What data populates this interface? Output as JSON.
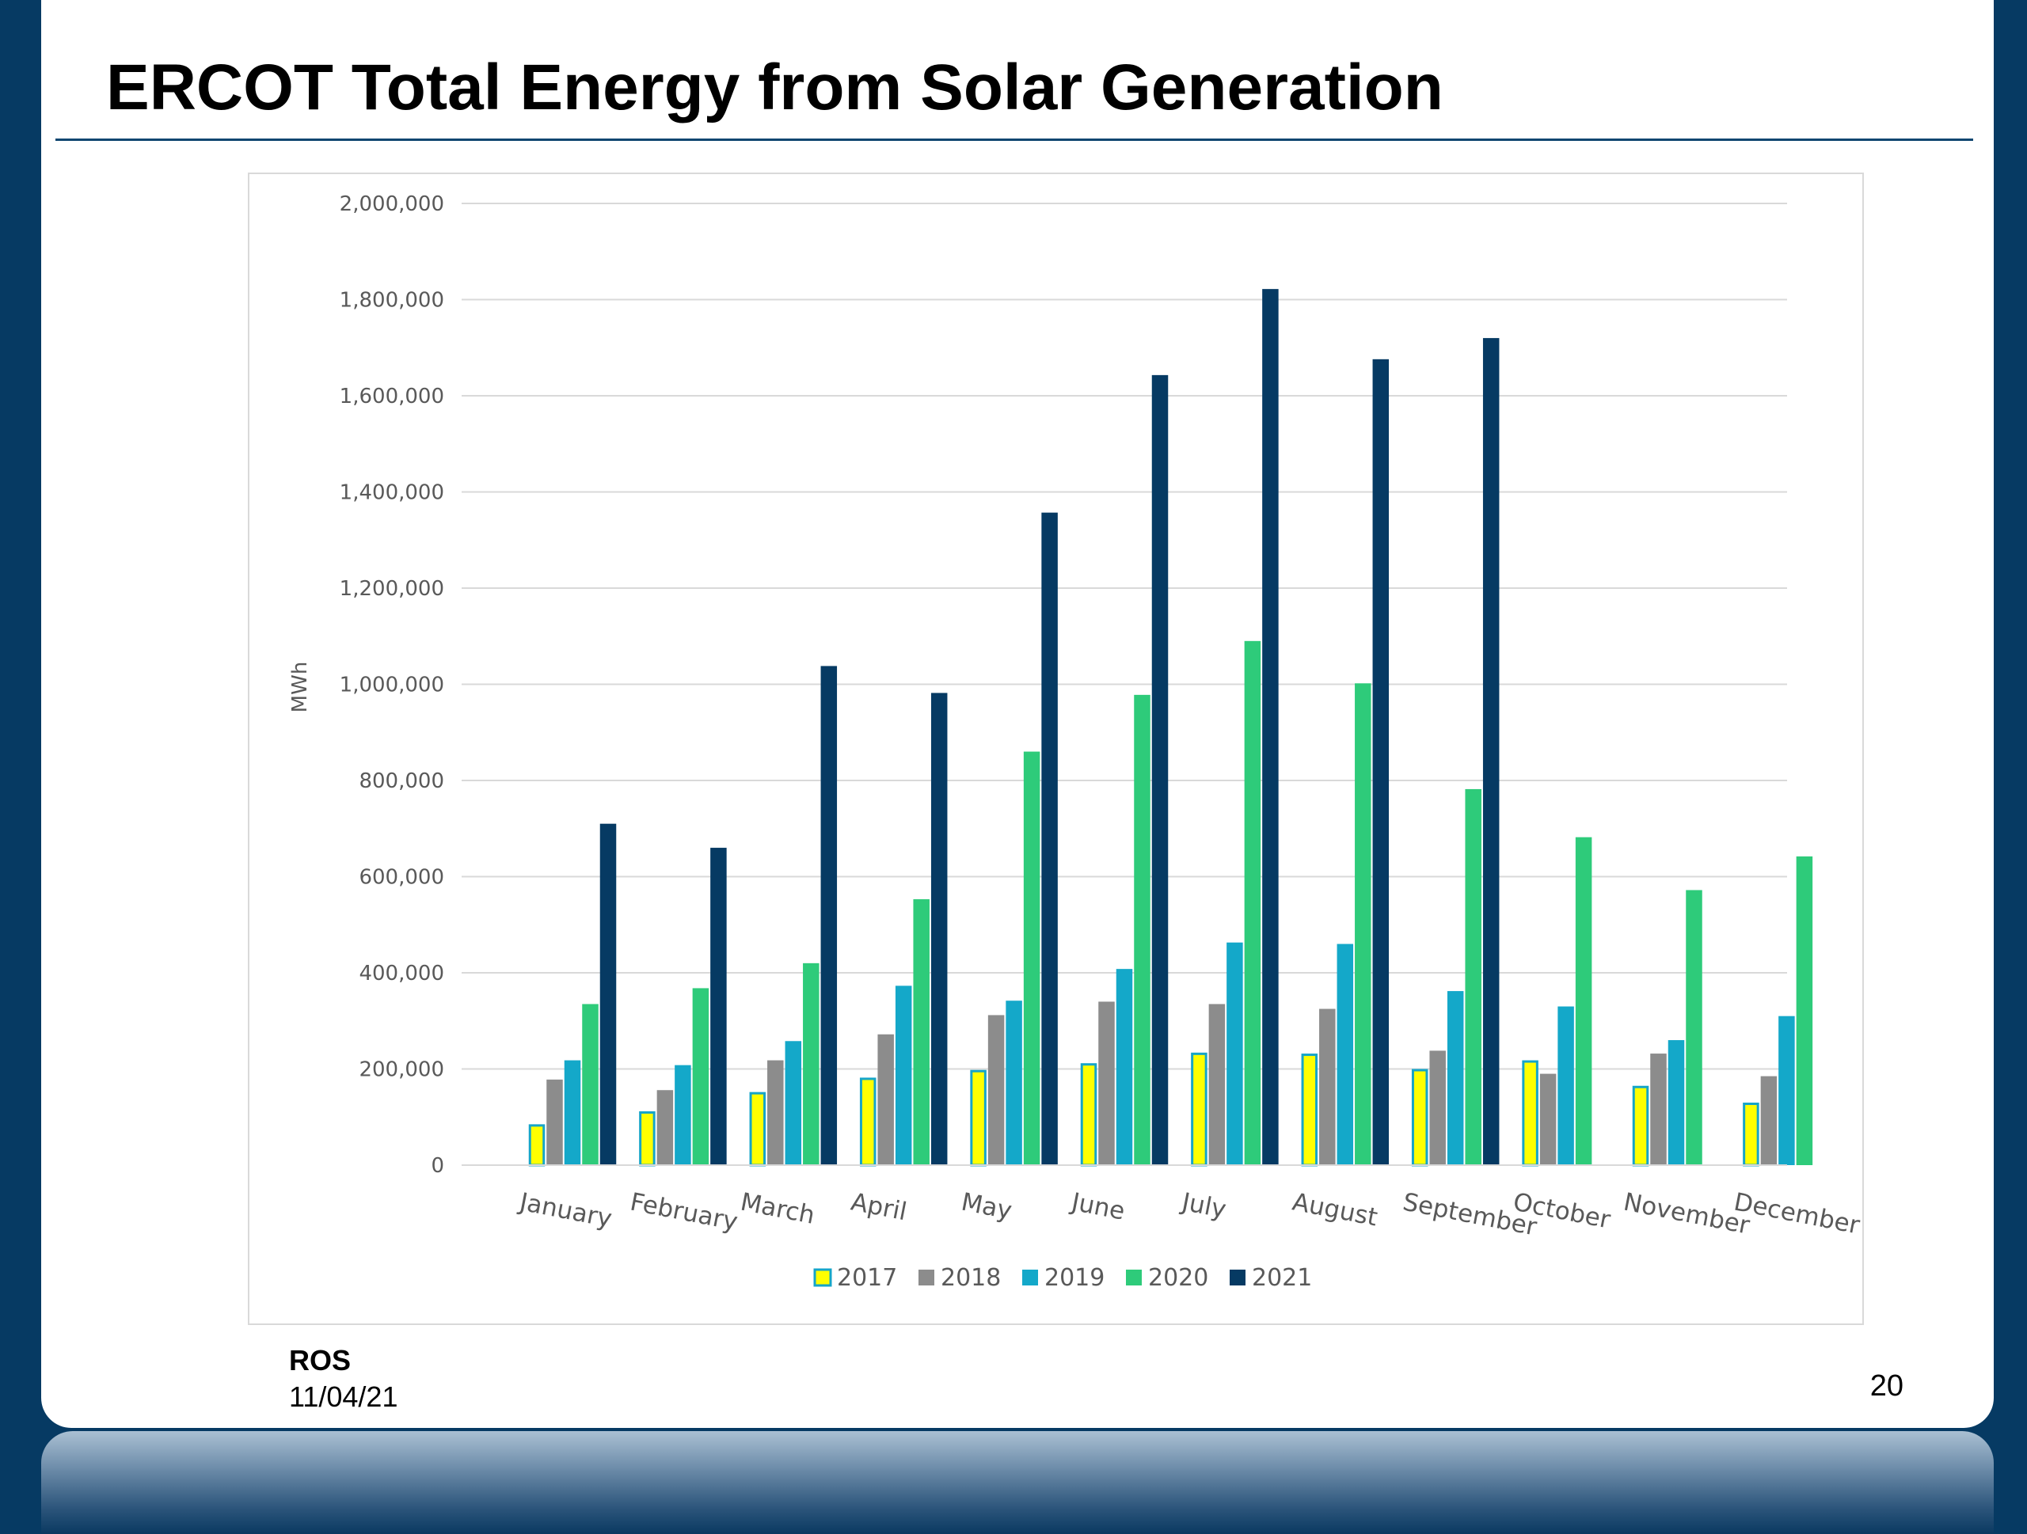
{
  "slide": {
    "title": "ERCOT Total Energy from Solar Generation",
    "footer_label": "ROS",
    "footer_date": "11/04/21",
    "page_number": "20"
  },
  "colors": {
    "background": "#063a63",
    "title_rule": "#0f4670",
    "gridline": "#d9d9d9",
    "axis_text": "#595959"
  },
  "chart_data": {
    "type": "bar",
    "title": "",
    "xlabel": "",
    "ylabel": "MWh",
    "ylim": [
      0,
      2000000
    ],
    "yticks": [
      0,
      200000,
      400000,
      600000,
      800000,
      1000000,
      1200000,
      1400000,
      1600000,
      1800000,
      2000000
    ],
    "ytick_labels": [
      "0",
      "200,000",
      "400,000",
      "600,000",
      "800,000",
      "1,000,000",
      "1,200,000",
      "1,400,000",
      "1,600,000",
      "1,800,000",
      "2,000,000"
    ],
    "grid": true,
    "legend_position": "bottom",
    "categories": [
      "January",
      "February",
      "March",
      "April",
      "May",
      "June",
      "July",
      "August",
      "September",
      "October",
      "November",
      "December"
    ],
    "series": [
      {
        "name": "2017",
        "color": "#ffff00",
        "outline": "#16a5c8",
        "values": [
          85000,
          112000,
          152000,
          182000,
          198000,
          212000,
          234000,
          232000,
          200000,
          218000,
          165000,
          130000
        ]
      },
      {
        "name": "2018",
        "color": "#8c8c8c",
        "values": [
          178000,
          156000,
          218000,
          272000,
          312000,
          340000,
          335000,
          325000,
          238000,
          190000,
          232000,
          185000
        ]
      },
      {
        "name": "2019",
        "color": "#14a8c9",
        "values": [
          218000,
          208000,
          258000,
          373000,
          342000,
          408000,
          463000,
          460000,
          362000,
          330000,
          260000,
          310000
        ]
      },
      {
        "name": "2020",
        "color": "#2ecb7a",
        "values": [
          335000,
          368000,
          420000,
          553000,
          860000,
          978000,
          1090000,
          1002000,
          782000,
          682000,
          572000,
          642000
        ]
      },
      {
        "name": "2021",
        "color": "#063a63",
        "values": [
          710000,
          660000,
          1038000,
          982000,
          1357000,
          1643000,
          1822000,
          1676000,
          1720000,
          null,
          null,
          null
        ]
      }
    ]
  }
}
